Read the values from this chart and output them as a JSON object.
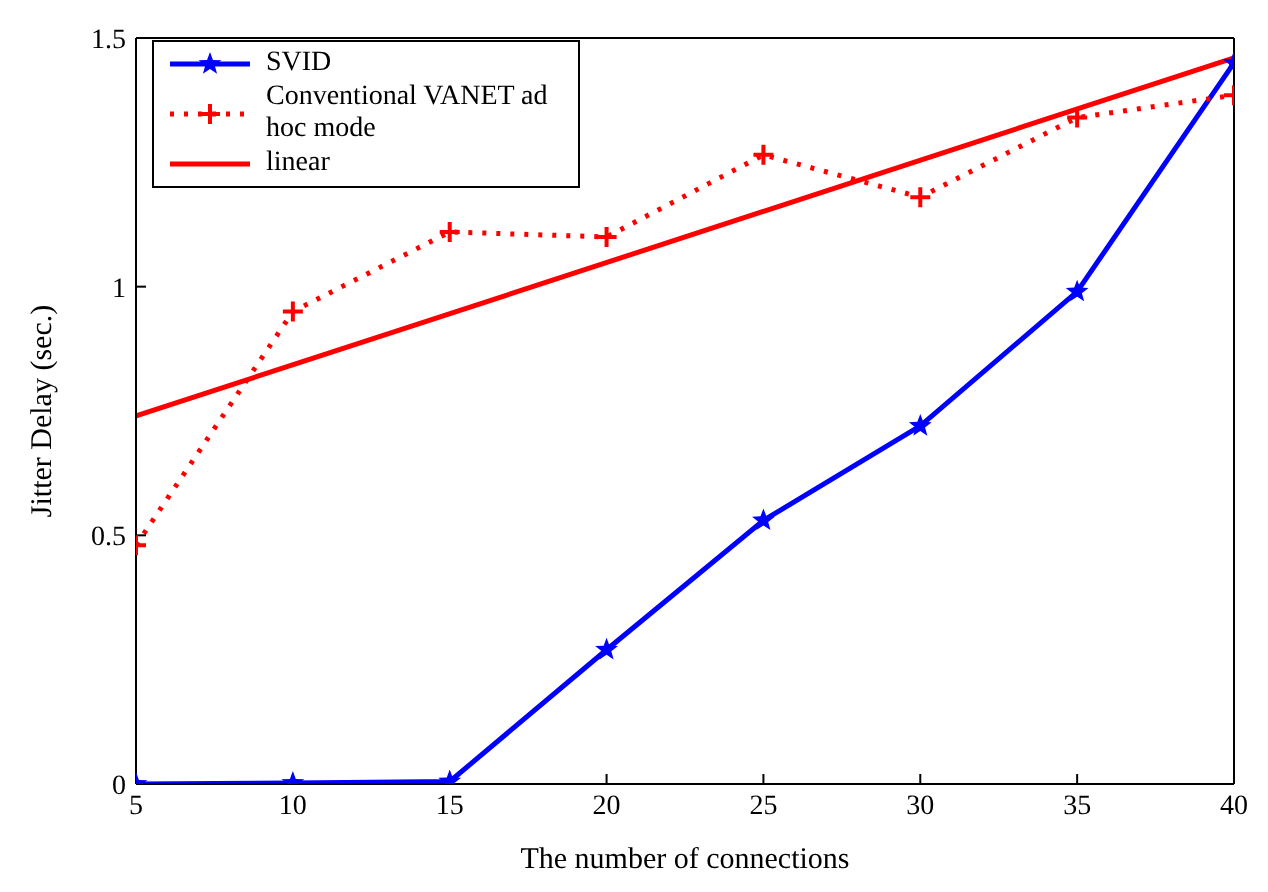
{
  "chart_data": {
    "type": "line",
    "xlabel": "The number of connections",
    "ylabel": "Jitter Delay (sec.)",
    "xlim": [
      5,
      40
    ],
    "xticks": [
      5,
      10,
      15,
      20,
      25,
      30,
      35,
      40
    ],
    "ylim": [
      0,
      1.5
    ],
    "yticks": [
      0,
      0.5,
      1,
      1.5
    ],
    "grid": false,
    "legend": "top left",
    "x": [
      5,
      10,
      15,
      20,
      25,
      30,
      35,
      40
    ],
    "series": [
      {
        "name": "SVID",
        "color": "#0000ff",
        "marker": "star",
        "line_style": "solid",
        "values": [
          0,
          0.002,
          0.005,
          0.27,
          0.53,
          0.72,
          0.99,
          1.45
        ]
      },
      {
        "name": "Conventional VANET ad hoc mode",
        "color": "#ff0000",
        "marker": "cross",
        "line_style": "dotted",
        "values": [
          0.48,
          0.95,
          1.11,
          1.1,
          1.265,
          1.18,
          1.34,
          1.385
        ]
      },
      {
        "name": "linear",
        "color": "#ff0000",
        "marker": "none",
        "line_style": "solid",
        "x": [
          5,
          40
        ],
        "values": [
          0.74,
          1.46
        ]
      }
    ]
  }
}
